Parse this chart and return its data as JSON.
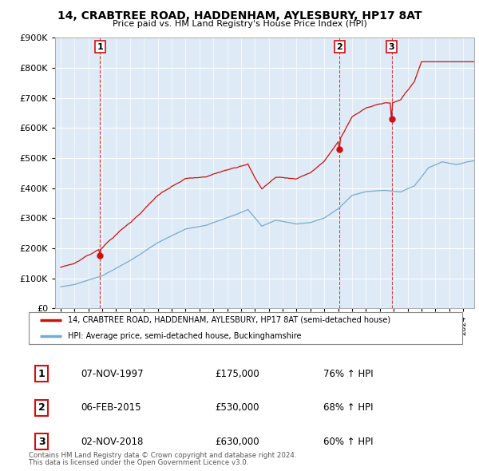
{
  "title": "14, CRABTREE ROAD, HADDENHAM, AYLESBURY, HP17 8AT",
  "subtitle": "Price paid vs. HM Land Registry's House Price Index (HPI)",
  "legend_line1": "14, CRABTREE ROAD, HADDENHAM, AYLESBURY, HP17 8AT (semi-detached house)",
  "legend_line2": "HPI: Average price, semi-detached house, Buckinghamshire",
  "footnote1": "Contains HM Land Registry data © Crown copyright and database right 2024.",
  "footnote2": "This data is licensed under the Open Government Licence v3.0.",
  "sale_points": [
    {
      "num": 1,
      "date": "07-NOV-1997",
      "price": 175000,
      "year": 1997.85,
      "pct": "76%",
      "dir": "↑"
    },
    {
      "num": 2,
      "date": "06-FEB-2015",
      "price": 530000,
      "year": 2015.1,
      "pct": "68%",
      "dir": "↑"
    },
    {
      "num": 3,
      "date": "02-NOV-2018",
      "price": 630000,
      "year": 2018.85,
      "pct": "60%",
      "dir": "↑"
    }
  ],
  "red_color": "#cc1111",
  "blue_color": "#7aabcc",
  "bg_color": "#deeaf5",
  "ylim": [
    0,
    900000
  ],
  "yticks": [
    0,
    100000,
    200000,
    300000,
    400000,
    500000,
    600000,
    700000,
    800000,
    900000
  ],
  "xlim_start": 1994.6,
  "xlim_end": 2024.8
}
